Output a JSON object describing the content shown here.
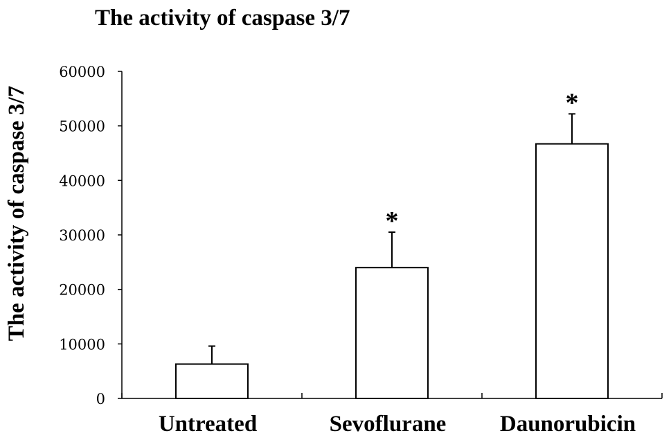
{
  "chart_data": {
    "type": "bar",
    "title": "The activity of caspase 3/7",
    "xlabel": "",
    "ylabel": "The activity of caspase 3/7",
    "categories": [
      "Untreated",
      "Sevoflurane",
      "Daunorubicin"
    ],
    "values": [
      6300,
      24000,
      46700
    ],
    "error_upper": [
      9600,
      30500,
      52200
    ],
    "significance": [
      "",
      "*",
      "*"
    ],
    "ylim": [
      0,
      60000
    ],
    "yticks": [
      0,
      10000,
      20000,
      30000,
      40000,
      50000,
      60000
    ],
    "ytick_labels": [
      "0",
      "10000",
      "20000",
      "30000",
      "40000",
      "50000",
      "60000"
    ],
    "grid": false,
    "legend": "none",
    "bar_fill": "#ffffff",
    "bar_edge": "#000000"
  }
}
